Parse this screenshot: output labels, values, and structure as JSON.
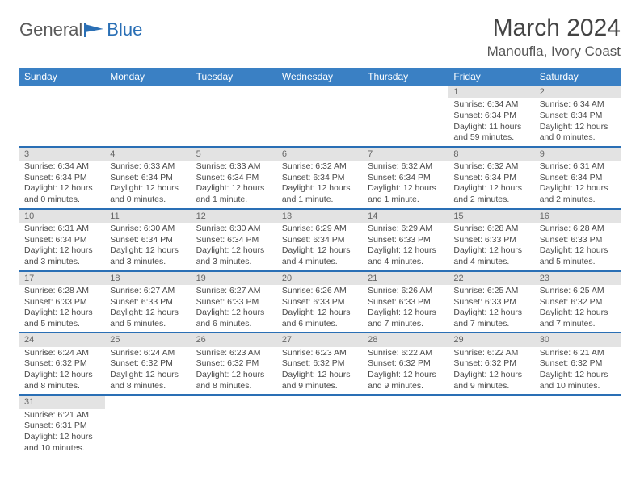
{
  "logo": {
    "general": "General",
    "blue": "Blue"
  },
  "header": {
    "title": "March 2024",
    "location": "Manoufla, Ivory Coast"
  },
  "colors": {
    "headerBg": "#3a80c4",
    "dayBg": "#e3e3e3",
    "rule": "#2a6fb5"
  },
  "weekdays": [
    "Sunday",
    "Monday",
    "Tuesday",
    "Wednesday",
    "Thursday",
    "Friday",
    "Saturday"
  ],
  "weeks": [
    {
      "nums": [
        "",
        "",
        "",
        "",
        "",
        "1",
        "2"
      ],
      "info": [
        null,
        null,
        null,
        null,
        null,
        {
          "sr": "Sunrise: 6:34 AM",
          "ss": "Sunset: 6:34 PM",
          "d1": "Daylight: 11 hours",
          "d2": "and 59 minutes."
        },
        {
          "sr": "Sunrise: 6:34 AM",
          "ss": "Sunset: 6:34 PM",
          "d1": "Daylight: 12 hours",
          "d2": "and 0 minutes."
        }
      ]
    },
    {
      "nums": [
        "3",
        "4",
        "5",
        "6",
        "7",
        "8",
        "9"
      ],
      "info": [
        {
          "sr": "Sunrise: 6:34 AM",
          "ss": "Sunset: 6:34 PM",
          "d1": "Daylight: 12 hours",
          "d2": "and 0 minutes."
        },
        {
          "sr": "Sunrise: 6:33 AM",
          "ss": "Sunset: 6:34 PM",
          "d1": "Daylight: 12 hours",
          "d2": "and 0 minutes."
        },
        {
          "sr": "Sunrise: 6:33 AM",
          "ss": "Sunset: 6:34 PM",
          "d1": "Daylight: 12 hours",
          "d2": "and 1 minute."
        },
        {
          "sr": "Sunrise: 6:32 AM",
          "ss": "Sunset: 6:34 PM",
          "d1": "Daylight: 12 hours",
          "d2": "and 1 minute."
        },
        {
          "sr": "Sunrise: 6:32 AM",
          "ss": "Sunset: 6:34 PM",
          "d1": "Daylight: 12 hours",
          "d2": "and 1 minute."
        },
        {
          "sr": "Sunrise: 6:32 AM",
          "ss": "Sunset: 6:34 PM",
          "d1": "Daylight: 12 hours",
          "d2": "and 2 minutes."
        },
        {
          "sr": "Sunrise: 6:31 AM",
          "ss": "Sunset: 6:34 PM",
          "d1": "Daylight: 12 hours",
          "d2": "and 2 minutes."
        }
      ]
    },
    {
      "nums": [
        "10",
        "11",
        "12",
        "13",
        "14",
        "15",
        "16"
      ],
      "info": [
        {
          "sr": "Sunrise: 6:31 AM",
          "ss": "Sunset: 6:34 PM",
          "d1": "Daylight: 12 hours",
          "d2": "and 3 minutes."
        },
        {
          "sr": "Sunrise: 6:30 AM",
          "ss": "Sunset: 6:34 PM",
          "d1": "Daylight: 12 hours",
          "d2": "and 3 minutes."
        },
        {
          "sr": "Sunrise: 6:30 AM",
          "ss": "Sunset: 6:34 PM",
          "d1": "Daylight: 12 hours",
          "d2": "and 3 minutes."
        },
        {
          "sr": "Sunrise: 6:29 AM",
          "ss": "Sunset: 6:34 PM",
          "d1": "Daylight: 12 hours",
          "d2": "and 4 minutes."
        },
        {
          "sr": "Sunrise: 6:29 AM",
          "ss": "Sunset: 6:33 PM",
          "d1": "Daylight: 12 hours",
          "d2": "and 4 minutes."
        },
        {
          "sr": "Sunrise: 6:28 AM",
          "ss": "Sunset: 6:33 PM",
          "d1": "Daylight: 12 hours",
          "d2": "and 4 minutes."
        },
        {
          "sr": "Sunrise: 6:28 AM",
          "ss": "Sunset: 6:33 PM",
          "d1": "Daylight: 12 hours",
          "d2": "and 5 minutes."
        }
      ]
    },
    {
      "nums": [
        "17",
        "18",
        "19",
        "20",
        "21",
        "22",
        "23"
      ],
      "info": [
        {
          "sr": "Sunrise: 6:28 AM",
          "ss": "Sunset: 6:33 PM",
          "d1": "Daylight: 12 hours",
          "d2": "and 5 minutes."
        },
        {
          "sr": "Sunrise: 6:27 AM",
          "ss": "Sunset: 6:33 PM",
          "d1": "Daylight: 12 hours",
          "d2": "and 5 minutes."
        },
        {
          "sr": "Sunrise: 6:27 AM",
          "ss": "Sunset: 6:33 PM",
          "d1": "Daylight: 12 hours",
          "d2": "and 6 minutes."
        },
        {
          "sr": "Sunrise: 6:26 AM",
          "ss": "Sunset: 6:33 PM",
          "d1": "Daylight: 12 hours",
          "d2": "and 6 minutes."
        },
        {
          "sr": "Sunrise: 6:26 AM",
          "ss": "Sunset: 6:33 PM",
          "d1": "Daylight: 12 hours",
          "d2": "and 7 minutes."
        },
        {
          "sr": "Sunrise: 6:25 AM",
          "ss": "Sunset: 6:33 PM",
          "d1": "Daylight: 12 hours",
          "d2": "and 7 minutes."
        },
        {
          "sr": "Sunrise: 6:25 AM",
          "ss": "Sunset: 6:32 PM",
          "d1": "Daylight: 12 hours",
          "d2": "and 7 minutes."
        }
      ]
    },
    {
      "nums": [
        "24",
        "25",
        "26",
        "27",
        "28",
        "29",
        "30"
      ],
      "info": [
        {
          "sr": "Sunrise: 6:24 AM",
          "ss": "Sunset: 6:32 PM",
          "d1": "Daylight: 12 hours",
          "d2": "and 8 minutes."
        },
        {
          "sr": "Sunrise: 6:24 AM",
          "ss": "Sunset: 6:32 PM",
          "d1": "Daylight: 12 hours",
          "d2": "and 8 minutes."
        },
        {
          "sr": "Sunrise: 6:23 AM",
          "ss": "Sunset: 6:32 PM",
          "d1": "Daylight: 12 hours",
          "d2": "and 8 minutes."
        },
        {
          "sr": "Sunrise: 6:23 AM",
          "ss": "Sunset: 6:32 PM",
          "d1": "Daylight: 12 hours",
          "d2": "and 9 minutes."
        },
        {
          "sr": "Sunrise: 6:22 AM",
          "ss": "Sunset: 6:32 PM",
          "d1": "Daylight: 12 hours",
          "d2": "and 9 minutes."
        },
        {
          "sr": "Sunrise: 6:22 AM",
          "ss": "Sunset: 6:32 PM",
          "d1": "Daylight: 12 hours",
          "d2": "and 9 minutes."
        },
        {
          "sr": "Sunrise: 6:21 AM",
          "ss": "Sunset: 6:32 PM",
          "d1": "Daylight: 12 hours",
          "d2": "and 10 minutes."
        }
      ]
    },
    {
      "nums": [
        "31",
        "",
        "",
        "",
        "",
        "",
        ""
      ],
      "info": [
        {
          "sr": "Sunrise: 6:21 AM",
          "ss": "Sunset: 6:31 PM",
          "d1": "Daylight: 12 hours",
          "d2": "and 10 minutes."
        },
        null,
        null,
        null,
        null,
        null,
        null
      ]
    }
  ]
}
